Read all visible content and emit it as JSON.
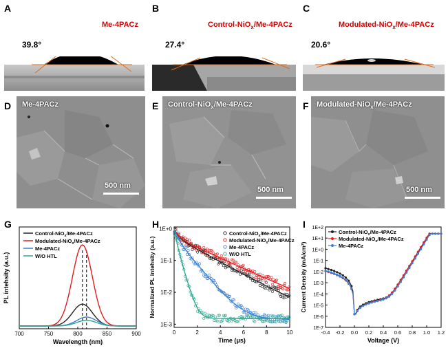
{
  "panels": {
    "A": {
      "letter": "A",
      "title": "Me-4PACz",
      "angle": "39.8°"
    },
    "B": {
      "letter": "B",
      "title_main": "Control-NiO",
      "title_sub": "x",
      "title_tail": "/Me-4PACz",
      "angle": "27.4°"
    },
    "C": {
      "letter": "C",
      "title_main": "Modulated-NiO",
      "title_sub": "x",
      "title_tail": "/Me-4PACz",
      "angle": "20.6°"
    },
    "D": {
      "letter": "D",
      "title": "Me-4PACz",
      "scale": "500 nm"
    },
    "E": {
      "letter": "E",
      "title_main": "Control-NiO",
      "title_sub": "x",
      "title_tail": "/Me-4PACz",
      "scale": "500 nm"
    },
    "F": {
      "letter": "F",
      "title_main": "Modulated-NiO",
      "title_sub": "x",
      "title_tail": "/Me-4PACz",
      "scale": "500 nm"
    },
    "G": {
      "letter": "G"
    },
    "H": {
      "letter": "H"
    },
    "I": {
      "letter": "I"
    }
  },
  "colors": {
    "red": "#e41a1c",
    "black": "#222222",
    "blue": "#3a7fd5",
    "green": "#2ca58d",
    "title_red": "#d40000"
  },
  "chart_data": [
    {
      "type": "line",
      "panel": "G",
      "xlabel": "Wavelength (nm)",
      "ylabel": "PL intehsity (a.u.)",
      "xlim": [
        700,
        900
      ],
      "xticks": [
        "700",
        "750",
        "800",
        "850",
        "900"
      ],
      "legend": [
        "Control-NiOx/Me-4PACz",
        "Modulated-NiOx/Me-4PACz",
        "Me-4PACz",
        "W/O HTL"
      ],
      "series": [
        {
          "name": "Control-NiOx/Me-4PACz",
          "peak_nm": 808,
          "relative_peak": 0.27,
          "color": "#222222"
        },
        {
          "name": "Modulated-NiOx/Me-4PACz",
          "peak_nm": 808,
          "relative_peak": 1.0,
          "color": "#e41a1c"
        },
        {
          "name": "Me-4PACz",
          "peak_nm": 815,
          "relative_peak": 0.11,
          "color": "#3a7fd5"
        },
        {
          "name": "W/O HTL",
          "peak_nm": 815,
          "relative_peak": 0.07,
          "color": "#2ca58d"
        }
      ],
      "dashed_lines_nm": [
        808,
        815
      ]
    },
    {
      "type": "scatter",
      "panel": "H",
      "xlabel": "Time (μs)",
      "ylabel": "Normalized PL intehsity (a.u.)",
      "xlim": [
        0,
        10
      ],
      "ylog": true,
      "ylim": [
        0.001,
        1
      ],
      "xticks": [
        "0",
        "2",
        "4",
        "6",
        "8",
        "10"
      ],
      "yticks": [
        "1E+0",
        "1E-1",
        "1E-2",
        "1E-3"
      ],
      "legend": [
        "Control-NiOx/Me-4PACz",
        "Modulated-NiOx/Me-4PACz",
        "Me-4PACz",
        "W/O HTL"
      ],
      "series": [
        {
          "name": "Control-NiOx/Me-4PACz",
          "tau_fast": 0.3,
          "tau_slow": 2.2,
          "floor": 0.0012,
          "color": "#222222"
        },
        {
          "name": "Modulated-NiOx/Me-4PACz",
          "tau_fast": 0.3,
          "tau_slow": 2.6,
          "floor": 0.0015,
          "color": "#e41a1c"
        },
        {
          "name": "Me-4PACz",
          "tau_fast": 0.25,
          "tau_slow": 1.0,
          "floor": 0.0014,
          "color": "#3a7fd5"
        },
        {
          "name": "W/O HTL",
          "tau_fast": 0.15,
          "tau_slow": 0.35,
          "floor": 0.0015,
          "color": "#2ca58d"
        }
      ]
    },
    {
      "type": "line",
      "panel": "I",
      "xlabel": "Voltage (V)",
      "ylabel": "Current Density (mA/cm²)",
      "xlim": [
        -0.4,
        1.2
      ],
      "ylog": true,
      "ylim": [
        1e-07,
        100
      ],
      "xticks": [
        "-0.4",
        "-0.2",
        "0.0",
        "0.2",
        "0.4",
        "0.6",
        "0.8",
        "1.0",
        "1.2"
      ],
      "yticks": [
        "1E+2",
        "1E+1",
        "1E+0",
        "1E-1",
        "1E-2",
        "1E-3",
        "1E-4",
        "1E-5",
        "1E-6",
        "1E-7"
      ],
      "legend": [
        "Control-NiOx/Me-4PACz",
        "Modulated-NiOx/Me-4PACz",
        "Me-4PACz"
      ],
      "series": [
        {
          "name": "Control-NiOx/Me-4PACz",
          "color": "#222222"
        },
        {
          "name": "Modulated-NiOx/Me-4PACz",
          "color": "#e41a1c"
        },
        {
          "name": "Me-4PACz",
          "color": "#3a7fd5"
        }
      ]
    }
  ]
}
